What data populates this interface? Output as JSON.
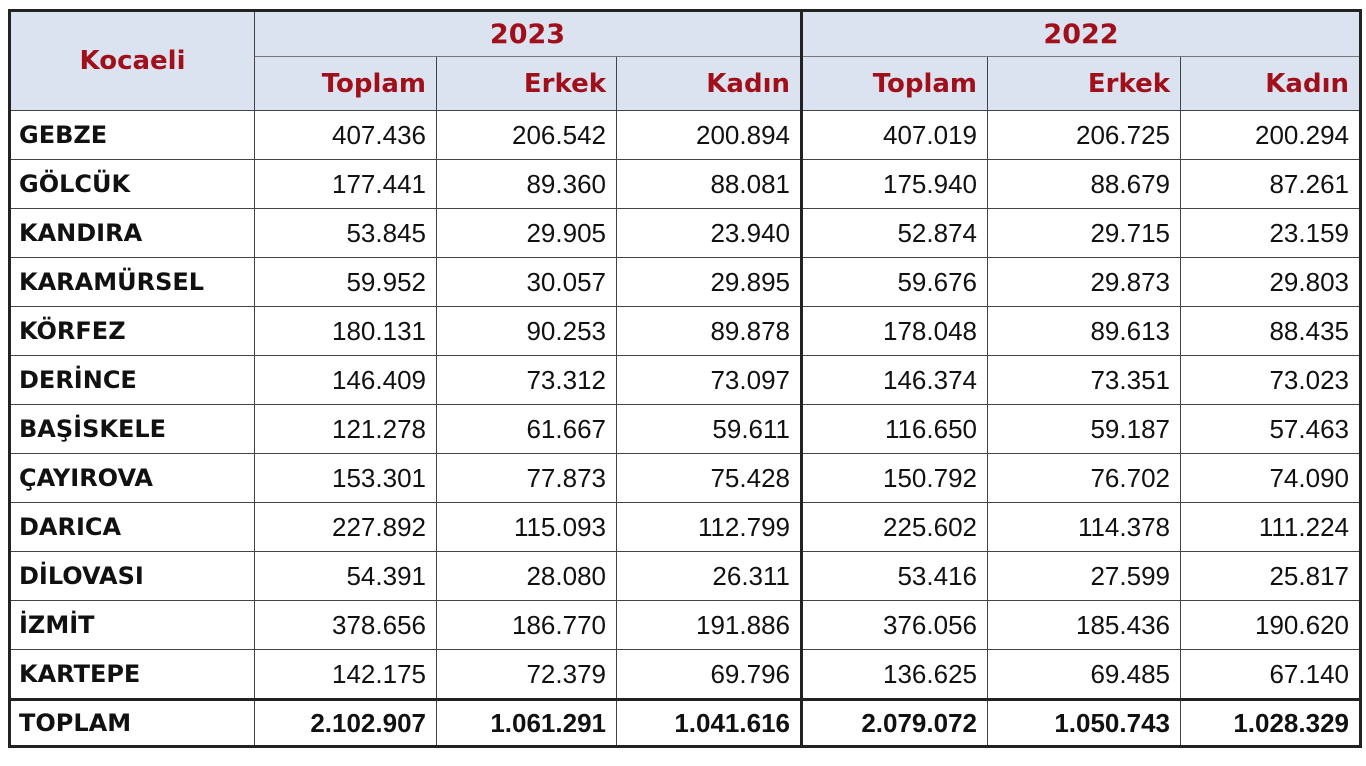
{
  "header": {
    "region_label": "Kocaeli",
    "years": [
      "2023",
      "2022"
    ],
    "subcolumns": [
      "Toplam",
      "Erkek",
      "Kadın"
    ]
  },
  "rows": [
    {
      "name": "GEBZE",
      "values": [
        "407.436",
        "206.542",
        "200.894",
        "407.019",
        "206.725",
        "200.294"
      ]
    },
    {
      "name": "GÖLCÜK",
      "values": [
        "177.441",
        "89.360",
        "88.081",
        "175.940",
        "88.679",
        "87.261"
      ]
    },
    {
      "name": "KANDIRA",
      "values": [
        "53.845",
        "29.905",
        "23.940",
        "52.874",
        "29.715",
        "23.159"
      ]
    },
    {
      "name": "KARAMÜRSEL",
      "values": [
        "59.952",
        "30.057",
        "29.895",
        "59.676",
        "29.873",
        "29.803"
      ]
    },
    {
      "name": "KÖRFEZ",
      "values": [
        "180.131",
        "90.253",
        "89.878",
        "178.048",
        "89.613",
        "88.435"
      ]
    },
    {
      "name": "DERİNCE",
      "values": [
        "146.409",
        "73.312",
        "73.097",
        "146.374",
        "73.351",
        "73.023"
      ]
    },
    {
      "name": "BAŞİSKELE",
      "values": [
        "121.278",
        "61.667",
        "59.611",
        "116.650",
        "59.187",
        "57.463"
      ]
    },
    {
      "name": "ÇAYIROVA",
      "values": [
        "153.301",
        "77.873",
        "75.428",
        "150.792",
        "76.702",
        "74.090"
      ]
    },
    {
      "name": "DARICA",
      "values": [
        "227.892",
        "115.093",
        "112.799",
        "225.602",
        "114.378",
        "111.224"
      ]
    },
    {
      "name": "DİLOVASI",
      "values": [
        "54.391",
        "28.080",
        "26.311",
        "53.416",
        "27.599",
        "25.817"
      ]
    },
    {
      "name": "İZMİT",
      "values": [
        "378.656",
        "186.770",
        "191.886",
        "376.056",
        "185.436",
        "190.620"
      ]
    },
    {
      "name": "KARTEPE",
      "values": [
        "142.175",
        "72.379",
        "69.796",
        "136.625",
        "69.485",
        "67.140"
      ]
    }
  ],
  "total": {
    "name": "TOPLAM",
    "values": [
      "2.102.907",
      "1.061.291",
      "1.041.616",
      "2.079.072",
      "1.050.743",
      "1.028.329"
    ]
  },
  "colors": {
    "header_bg": "#dbe3f0",
    "header_text": "#a0101a",
    "grid": "#444444"
  }
}
